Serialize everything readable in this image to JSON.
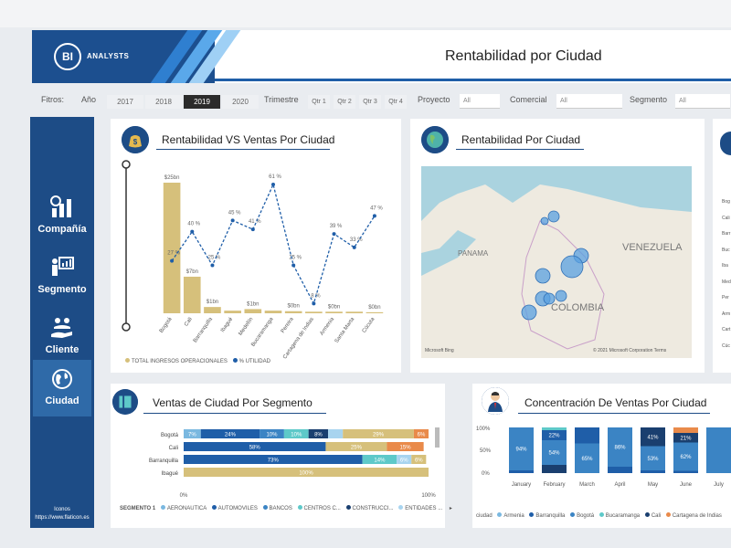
{
  "header": {
    "logo_initials": "BI",
    "logo_text": "ANALYSTS",
    "title": "Rentabilidad por Ciudad"
  },
  "filters": {
    "label": "Fitros:",
    "year_label": "Año",
    "years": [
      "2017",
      "2018",
      "2019",
      "2020"
    ],
    "selected_year": "2019",
    "quarter_label": "Trimestre",
    "quarters": [
      "Qtr 1",
      "Qtr 2",
      "Qtr 3",
      "Qtr 4"
    ],
    "proyecto_label": "Proyecto",
    "proyecto_value": "All",
    "comercial_label": "Comercial",
    "comercial_value": "All",
    "segmento_label": "Segmento",
    "segmento_value": "All"
  },
  "sidebar": {
    "items": [
      {
        "label": "Compañía",
        "icon": "chart-icon"
      },
      {
        "label": "Segmento",
        "icon": "presentation-icon"
      },
      {
        "label": "Cliente",
        "icon": "hand-people-icon"
      },
      {
        "label": "Ciudad",
        "icon": "globe-icon"
      }
    ],
    "active": "Ciudad",
    "credit_line1": "Iconos",
    "credit_line2": "https://www.flaticon.es"
  },
  "cards": {
    "rent_ventas": {
      "title": "Rentabilidad VS Ventas Por Ciudad",
      "legend_bar": "TOTAL INGRESOS OPERACIONALES",
      "legend_line": "% UTILIDAD"
    },
    "map": {
      "title": "Rentabilidad Por Ciudad",
      "labels": [
        "VENEZUELA",
        "COLOMBIA",
        "PANAMA"
      ],
      "credit_left": "Microsoft Bing",
      "credit_right": "© 2021 Microsoft Corporation  Terms"
    },
    "segmento": {
      "title": "Ventas de Ciudad Por Segmento",
      "legend_title": "SEGMENTO 1",
      "legend": [
        "AERONAUTICA",
        "AUTOMOVILES",
        "BANCOS",
        "CENTROS C...",
        "CONSTRUCCI...",
        "ENTIDADES ..."
      ]
    },
    "concentracion": {
      "title": "Concentración De Ventas Por Ciudad",
      "legend_title": "ciudad",
      "legend": [
        "Armenia",
        "Barranquilla",
        "Bogotá",
        "Bucaramanga",
        "Cali",
        "Cartagena de Indias"
      ]
    }
  },
  "colors": {
    "navy": "#1d4c86",
    "gold": "#d6c07b",
    "orange": "#e98a4a",
    "teal": "#5ec9c9",
    "lightblue": "#7ab8e0",
    "midblue": "#3b84c4",
    "darkblue": "#1a3f6f"
  },
  "chart_data": [
    {
      "type": "bar",
      "title": "Rentabilidad VS Ventas Por Ciudad",
      "categories": [
        "Bogotá",
        "Cali",
        "Barranquilla",
        "Ibagué",
        "Medellín",
        "Bucaramanga",
        "Pereira",
        "Cartagena de Indias",
        "Armenia",
        "Santa Marta",
        "Cúcuta"
      ],
      "bar_labels": [
        "$25bn",
        "$7bn",
        "$1bn",
        "",
        "$1bn",
        "",
        "$0bn",
        "",
        "$0bn",
        "",
        "$0bn"
      ],
      "series": [
        {
          "name": "TOTAL INGRESOS OPERACIONALES",
          "values": [
            25,
            7,
            1.2,
            0.5,
            0.8,
            0.5,
            0.4,
            0.3,
            0.3,
            0.3,
            0.2
          ]
        },
        {
          "name": "% UTILIDAD",
          "values": [
            27,
            40,
            25,
            45,
            41,
            61,
            25,
            8,
            39,
            33,
            47
          ]
        }
      ],
      "line_labels": [
        "27 %",
        "40 %",
        "25 %",
        "45 %",
        "41 %",
        "61 %",
        "25 %",
        "8 %",
        "39 %",
        "33 %",
        "47 %"
      ]
    },
    {
      "type": "bar",
      "orientation": "horizontal-stacked-100",
      "title": "Ventas de Ciudad Por Segmento",
      "categories": [
        "Bogotá",
        "Cali",
        "Barranquilla",
        "Ibagué"
      ],
      "axis_min_label": "0%",
      "axis_max_label": "100%",
      "rows": [
        {
          "segments": [
            {
              "v": 7,
              "c": "#7ab8e0",
              "l": "7%"
            },
            {
              "v": 24,
              "c": "#1f5ea8",
              "l": "24%"
            },
            {
              "v": 10,
              "c": "#3b84c4",
              "l": "10%"
            },
            {
              "v": 10,
              "c": "#5ec9c9",
              "l": "10%"
            },
            {
              "v": 8,
              "c": "#1a3f6f",
              "l": "8%"
            },
            {
              "v": 6,
              "c": "#a8d4ef",
              "l": ""
            },
            {
              "v": 29,
              "c": "#d6c07b",
              "l": "29%"
            },
            {
              "v": 6,
              "c": "#e98a4a",
              "l": "6%"
            }
          ]
        },
        {
          "segments": [
            {
              "v": 58,
              "c": "#1f5ea8",
              "l": "58%"
            },
            {
              "v": 25,
              "c": "#d6c07b",
              "l": "25%"
            },
            {
              "v": 15,
              "c": "#e98a4a",
              "l": "15%"
            }
          ]
        },
        {
          "segments": [
            {
              "v": 73,
              "c": "#1f5ea8",
              "l": "73%"
            },
            {
              "v": 14,
              "c": "#5ec9c9",
              "l": "14%"
            },
            {
              "v": 6,
              "c": "#a8d4ef",
              "l": "6%"
            },
            {
              "v": 6,
              "c": "#d6c07b",
              "l": "6%"
            }
          ]
        },
        {
          "segments": [
            {
              "v": 100,
              "c": "#d6c07b",
              "l": "100%"
            }
          ]
        }
      ]
    },
    {
      "type": "bar",
      "orientation": "vertical-stacked-100",
      "title": "Concentración De Ventas Por Ciudad",
      "categories": [
        "January",
        "February",
        "March",
        "April",
        "May",
        "June",
        "July"
      ],
      "ytick_labels": [
        "100%",
        "50%",
        "0%"
      ],
      "columns": [
        {
          "segments": [
            {
              "v": 94,
              "c": "#3b84c4",
              "l": "94%"
            },
            {
              "v": 6,
              "c": "#1f5ea8",
              "l": ""
            }
          ]
        },
        {
          "segments": [
            {
              "v": 6,
              "c": "#5ec9c9",
              "l": ""
            },
            {
              "v": 22,
              "c": "#1f5ea8",
              "l": "22%"
            },
            {
              "v": 54,
              "c": "#3b84c4",
              "l": "54%"
            },
            {
              "v": 18,
              "c": "#1a3f6f",
              "l": ""
            }
          ]
        },
        {
          "segments": [
            {
              "v": 35,
              "c": "#1f5ea8",
              "l": ""
            },
            {
              "v": 65,
              "c": "#3b84c4",
              "l": "65%"
            }
          ]
        },
        {
          "segments": [
            {
              "v": 86,
              "c": "#3b84c4",
              "l": "86%"
            },
            {
              "v": 14,
              "c": "#1f5ea8",
              "l": ""
            }
          ]
        },
        {
          "segments": [
            {
              "v": 41,
              "c": "#1a3f6f",
              "l": "41%"
            },
            {
              "v": 53,
              "c": "#3b84c4",
              "l": "53%"
            },
            {
              "v": 6,
              "c": "#1f5ea8",
              "l": ""
            }
          ]
        },
        {
          "segments": [
            {
              "v": 12,
              "c": "#e98a4a",
              "l": ""
            },
            {
              "v": 21,
              "c": "#1a3f6f",
              "l": "21%"
            },
            {
              "v": 62,
              "c": "#3b84c4",
              "l": "62%"
            },
            {
              "v": 5,
              "c": "#1f5ea8",
              "l": ""
            }
          ]
        },
        {
          "segments": [
            {
              "v": 100,
              "c": "#3b84c4",
              "l": ""
            }
          ]
        }
      ]
    }
  ],
  "right_panel": {
    "labels": [
      "Bog",
      "Cali",
      "Barr",
      "Buc",
      "Iba",
      "Med",
      "Per",
      "Arm",
      "Cart",
      "Cúc"
    ]
  }
}
